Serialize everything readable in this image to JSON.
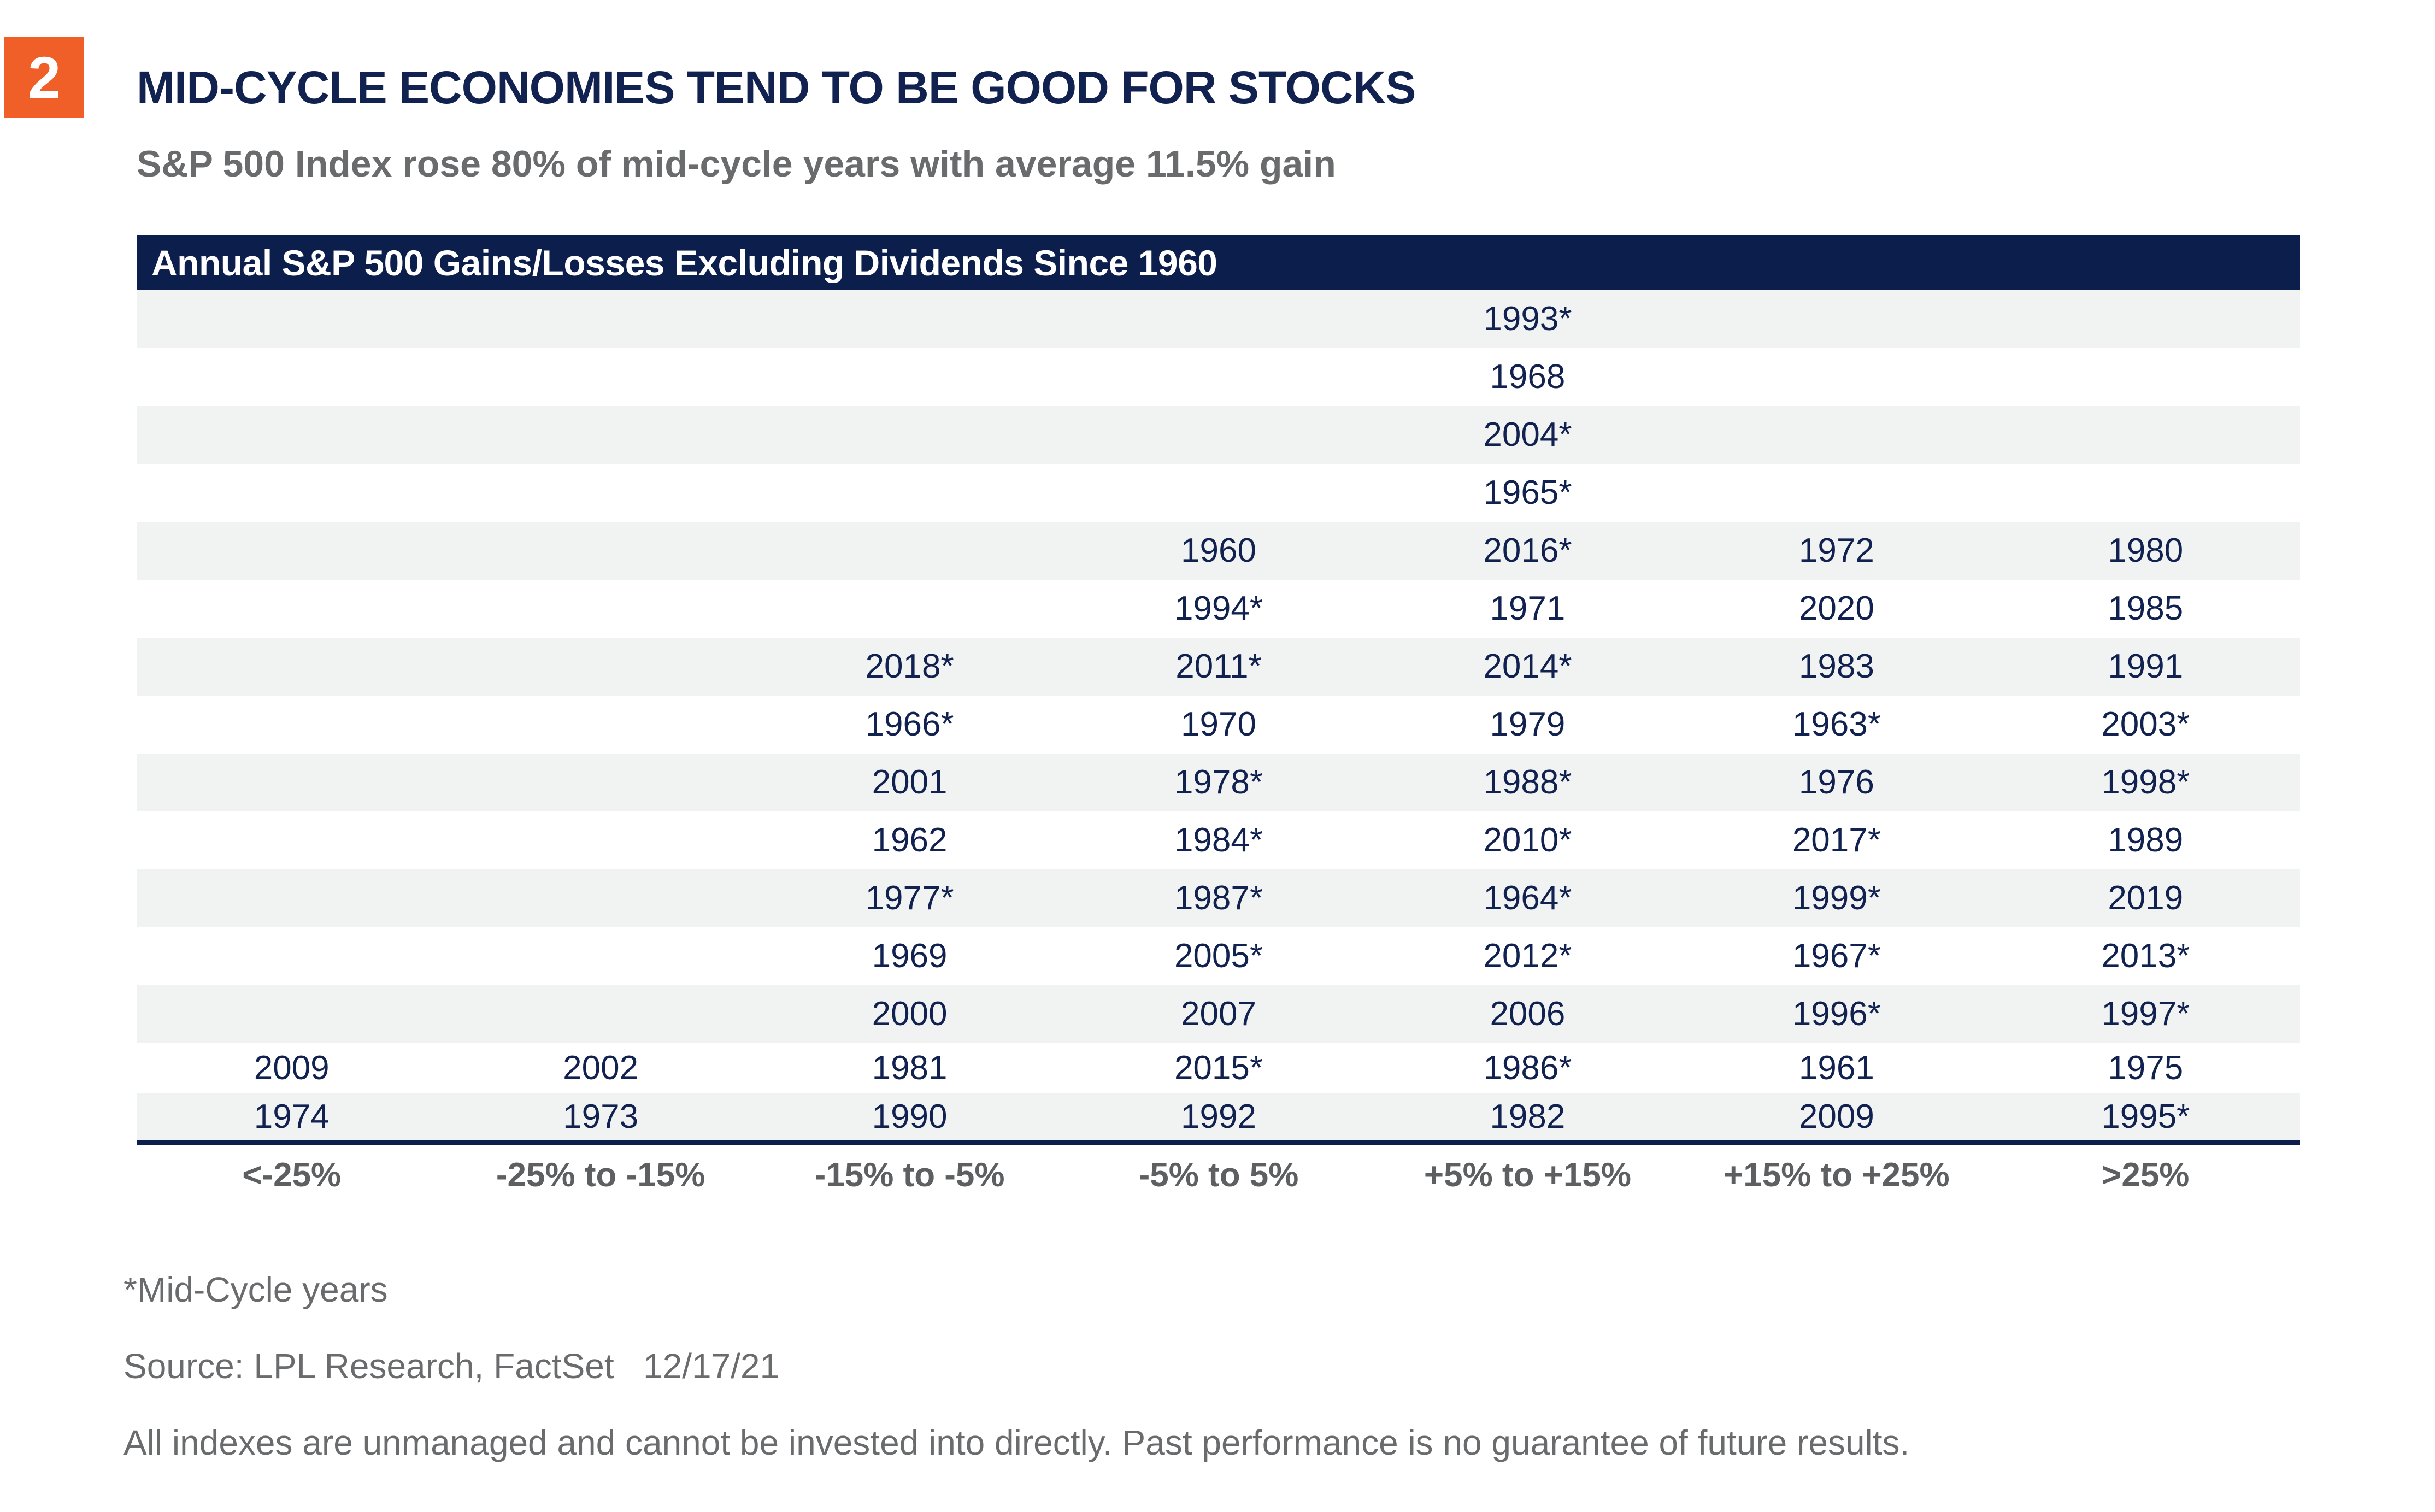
{
  "page": {
    "badge_number": "2",
    "title": "MID-CYCLE ECONOMIES TEND TO BE GOOD FOR STOCKS",
    "subtitle": "S&P 500 Index rose 80% of mid-cycle years with average 11.5% gain"
  },
  "table": {
    "header": "Annual S&P 500 Gains/Losses Excluding Dividends Since 1960",
    "columns": [
      "<-25%",
      "-25% to -15%",
      "-15% to -5%",
      "-5% to 5%",
      "+5% to +15%",
      "+15% to +25%",
      ">25%"
    ],
    "rows": [
      [
        "",
        "",
        "",
        "",
        "1993*",
        "",
        ""
      ],
      [
        "",
        "",
        "",
        "",
        "1968",
        "",
        ""
      ],
      [
        "",
        "",
        "",
        "",
        "2004*",
        "",
        ""
      ],
      [
        "",
        "",
        "",
        "",
        "1965*",
        "",
        ""
      ],
      [
        "",
        "",
        "",
        "1960",
        "2016*",
        "1972",
        "1980"
      ],
      [
        "",
        "",
        "",
        "1994*",
        "1971",
        "2020",
        "1985"
      ],
      [
        "",
        "",
        "2018*",
        "2011*",
        "2014*",
        "1983",
        "1991"
      ],
      [
        "",
        "",
        "1966*",
        "1970",
        "1979",
        "1963*",
        "2003*"
      ],
      [
        "",
        "",
        "2001",
        "1978*",
        "1988*",
        "1976",
        "1998*"
      ],
      [
        "",
        "",
        "1962",
        "1984*",
        "2010*",
        "2017*",
        "1989"
      ],
      [
        "",
        "",
        "1977*",
        "1987*",
        "1964*",
        "1999*",
        "2019"
      ],
      [
        "",
        "",
        "1969",
        "2005*",
        "2012*",
        "1967*",
        "2013*"
      ],
      [
        "",
        "",
        "2000",
        "2007",
        "2006",
        "1996*",
        "1997*"
      ],
      [
        "2009",
        "2002",
        "1981",
        "2015*",
        "1986*",
        "1961",
        "1975"
      ],
      [
        "1974",
        "1973",
        "1990",
        "1992",
        "1982",
        "2009",
        "1995*"
      ]
    ]
  },
  "footnotes": {
    "mid_cycle": "*Mid-Cycle years",
    "source": "Source: LPL Research, FactSet   12/17/21",
    "disclaimer": "All indexes are unmanaged and cannot be invested into directly. Past performance is no guarantee of future results."
  },
  "colors": {
    "navy": "#0C1E4C",
    "year_text": "#112250",
    "orange": "#F05F28",
    "stripe": "#F1F2F2",
    "subtitle_gray": "#6A6B6D",
    "label_gray": "#5D5F61",
    "footnote_gray": "#6A6B6D"
  },
  "chart_data": {
    "type": "table",
    "chart_title": "MID-CYCLE ECONOMIES TEND TO BE GOOD FOR STOCKS",
    "subtitle": "S&P 500 Index rose 80% of mid-cycle years with average 11.5% gain",
    "title": "Annual S&P 500 Gains/Losses Excluding Dividends Since 1960",
    "categories": [
      "<-25%",
      "-25% to -15%",
      "-15% to -5%",
      "-5% to 5%",
      "+5% to +15%",
      "+15% to +25%",
      ">25%"
    ],
    "counts": [
      2,
      2,
      9,
      11,
      15,
      11,
      11
    ],
    "years_by_bucket": {
      "<-25%": [
        "2009",
        "1974"
      ],
      "-25% to -15%": [
        "2002",
        "1973"
      ],
      "-15% to -5%": [
        "2018*",
        "1966*",
        "2001",
        "1962",
        "1977*",
        "1969",
        "2000",
        "1981",
        "1990"
      ],
      "-5% to 5%": [
        "1960",
        "1994*",
        "2011*",
        "1970",
        "1978*",
        "1984*",
        "1987*",
        "2005*",
        "2007",
        "2015*",
        "1992"
      ],
      "+5% to +15%": [
        "1993*",
        "1968",
        "2004*",
        "1965*",
        "2016*",
        "1971",
        "2014*",
        "1979",
        "1988*",
        "2010*",
        "1964*",
        "2012*",
        "2006",
        "1986*",
        "1982"
      ],
      "+15% to +25%": [
        "1972",
        "2020",
        "1983",
        "1963*",
        "1976",
        "2017*",
        "1999*",
        "1967*",
        "1996*",
        "1961",
        "2009"
      ],
      ">25%": [
        "1980",
        "1985",
        "1991",
        "2003*",
        "1998*",
        "1989",
        "2019",
        "2013*",
        "1997*",
        "1975",
        "1995*"
      ]
    },
    "asterisk_meaning": "Mid-Cycle years",
    "legend_position": "none",
    "grid": false
  }
}
